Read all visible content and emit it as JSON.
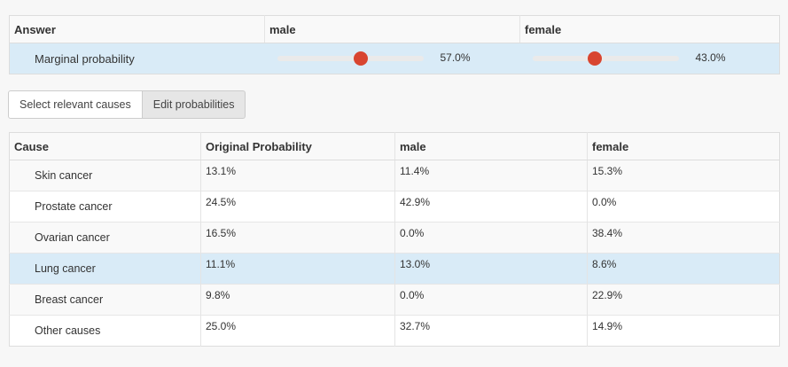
{
  "answer_table": {
    "headers": [
      "Answer",
      "male",
      "female"
    ],
    "row_label": "Marginal probability",
    "sliders": [
      {
        "name": "male",
        "value": 57.0,
        "display": "57.0%"
      },
      {
        "name": "female",
        "value": 43.0,
        "display": "43.0%"
      }
    ]
  },
  "buttons": {
    "select_causes": "Select relevant causes",
    "edit_probabilities": "Edit probabilities"
  },
  "cause_table": {
    "headers": [
      "Cause",
      "Original Probability",
      "male",
      "female"
    ],
    "rows": [
      {
        "cause": "Skin cancer",
        "original": "13.1%",
        "male": "11.4%",
        "female": "15.3%"
      },
      {
        "cause": "Prostate cancer",
        "original": "24.5%",
        "male": "42.9%",
        "female": "0.0%"
      },
      {
        "cause": "Ovarian cancer",
        "original": "16.5%",
        "male": "0.0%",
        "female": "38.4%"
      },
      {
        "cause": "Lung cancer",
        "original": "11.1%",
        "male": "13.0%",
        "female": "8.6%"
      },
      {
        "cause": "Breast cancer",
        "original": "9.8%",
        "male": "0.0%",
        "female": "22.9%"
      },
      {
        "cause": "Other causes",
        "original": "25.0%",
        "male": "32.7%",
        "female": "14.9%"
      }
    ],
    "highlighted_row": 3
  },
  "colors": {
    "slider_knob": "#d84530",
    "highlight": "#d9ebf7"
  }
}
